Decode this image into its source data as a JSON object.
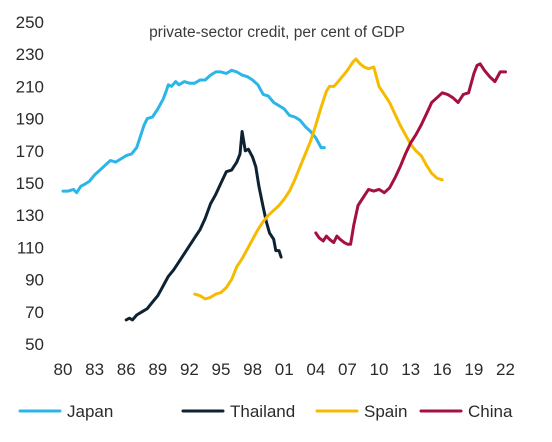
{
  "chart_data": {
    "type": "line",
    "title": "private-sector credit, per cent of GDP",
    "xlabel": "",
    "ylabel": "",
    "xlim": [
      1980,
      2023
    ],
    "ylim": [
      50,
      250
    ],
    "grid": false,
    "legend_position": "bottom",
    "x_ticks": [
      1980,
      1983,
      1986,
      1989,
      1992,
      1995,
      1998,
      2001,
      2004,
      2007,
      2010,
      2013,
      2016,
      2019,
      2022
    ],
    "x_tick_labels": [
      "80",
      "83",
      "86",
      "89",
      "92",
      "95",
      "98",
      "01",
      "04",
      "07",
      "10",
      "13",
      "16",
      "19",
      "22"
    ],
    "y_ticks": [
      50,
      70,
      90,
      110,
      130,
      150,
      170,
      190,
      210,
      230,
      250
    ],
    "y_tick_labels": [
      "50",
      "70",
      "90",
      "110",
      "130",
      "150",
      "170",
      "190",
      "210",
      "230",
      "250"
    ],
    "series": [
      {
        "name": "Japan",
        "color": "#2bb5e8",
        "points": [
          [
            1980.0,
            145
          ],
          [
            1980.5,
            145
          ],
          [
            1981.0,
            146
          ],
          [
            1981.3,
            144
          ],
          [
            1981.7,
            148
          ],
          [
            1982.0,
            149
          ],
          [
            1982.5,
            151
          ],
          [
            1983.0,
            155
          ],
          [
            1983.5,
            158
          ],
          [
            1984.0,
            161
          ],
          [
            1984.5,
            164
          ],
          [
            1985.0,
            163
          ],
          [
            1985.5,
            165
          ],
          [
            1986.0,
            167
          ],
          [
            1986.5,
            168
          ],
          [
            1987.0,
            172
          ],
          [
            1987.3,
            178
          ],
          [
            1987.7,
            186
          ],
          [
            1988.0,
            190
          ],
          [
            1988.5,
            191
          ],
          [
            1989.0,
            196
          ],
          [
            1989.5,
            202
          ],
          [
            1989.8,
            207
          ],
          [
            1990.0,
            211
          ],
          [
            1990.3,
            210
          ],
          [
            1990.7,
            213
          ],
          [
            1991.0,
            211
          ],
          [
            1991.5,
            213
          ],
          [
            1992.0,
            212
          ],
          [
            1992.5,
            212
          ],
          [
            1993.0,
            214
          ],
          [
            1993.5,
            214
          ],
          [
            1994.0,
            217
          ],
          [
            1994.5,
            219
          ],
          [
            1995.0,
            219
          ],
          [
            1995.5,
            218
          ],
          [
            1996.0,
            220
          ],
          [
            1996.5,
            219
          ],
          [
            1997.0,
            217
          ],
          [
            1997.5,
            216
          ],
          [
            1998.0,
            214
          ],
          [
            1998.5,
            211
          ],
          [
            1999.0,
            205
          ],
          [
            1999.5,
            204
          ],
          [
            2000.0,
            200
          ],
          [
            2000.5,
            198
          ],
          [
            2001.0,
            196
          ],
          [
            2001.5,
            192
          ],
          [
            2002.0,
            191
          ],
          [
            2002.5,
            189
          ],
          [
            2003.0,
            185
          ],
          [
            2003.5,
            182
          ],
          [
            2004.0,
            178
          ],
          [
            2004.5,
            172
          ],
          [
            2004.8,
            172
          ]
        ]
      },
      {
        "name": "Thailand",
        "color": "#0d2233",
        "points": [
          [
            1986.0,
            65
          ],
          [
            1986.3,
            66
          ],
          [
            1986.6,
            65
          ],
          [
            1987.0,
            68
          ],
          [
            1987.5,
            70
          ],
          [
            1988.0,
            72
          ],
          [
            1988.5,
            76
          ],
          [
            1989.0,
            80
          ],
          [
            1989.5,
            86
          ],
          [
            1990.0,
            92
          ],
          [
            1990.5,
            96
          ],
          [
            1991.0,
            101
          ],
          [
            1991.5,
            106
          ],
          [
            1992.0,
            111
          ],
          [
            1992.5,
            116
          ],
          [
            1993.0,
            121
          ],
          [
            1993.5,
            128
          ],
          [
            1994.0,
            137
          ],
          [
            1994.5,
            143
          ],
          [
            1995.0,
            150
          ],
          [
            1995.5,
            157
          ],
          [
            1996.0,
            158
          ],
          [
            1996.5,
            163
          ],
          [
            1996.8,
            168
          ],
          [
            1997.0,
            182
          ],
          [
            1997.3,
            170
          ],
          [
            1997.6,
            171
          ],
          [
            1998.0,
            166
          ],
          [
            1998.3,
            160
          ],
          [
            1998.6,
            148
          ],
          [
            1999.0,
            135
          ],
          [
            1999.3,
            126
          ],
          [
            1999.6,
            119
          ],
          [
            2000.0,
            115
          ],
          [
            2000.2,
            108
          ],
          [
            2000.5,
            108
          ],
          [
            2000.7,
            104
          ]
        ]
      },
      {
        "name": "Spain",
        "color": "#f6bb00",
        "points": [
          [
            1992.5,
            81
          ],
          [
            1993.0,
            80
          ],
          [
            1993.5,
            78
          ],
          [
            1994.0,
            79
          ],
          [
            1994.5,
            81
          ],
          [
            1995.0,
            82
          ],
          [
            1995.5,
            85
          ],
          [
            1996.0,
            90
          ],
          [
            1996.5,
            98
          ],
          [
            1997.0,
            103
          ],
          [
            1997.5,
            109
          ],
          [
            1998.0,
            115
          ],
          [
            1998.5,
            121
          ],
          [
            1999.0,
            126
          ],
          [
            1999.5,
            130
          ],
          [
            2000.0,
            133
          ],
          [
            2000.5,
            136
          ],
          [
            2001.0,
            140
          ],
          [
            2001.5,
            145
          ],
          [
            2002.0,
            152
          ],
          [
            2002.5,
            160
          ],
          [
            2003.0,
            168
          ],
          [
            2003.5,
            176
          ],
          [
            2004.0,
            186
          ],
          [
            2004.5,
            197
          ],
          [
            2005.0,
            207
          ],
          [
            2005.3,
            210
          ],
          [
            2005.7,
            210
          ],
          [
            2006.0,
            212
          ],
          [
            2006.5,
            216
          ],
          [
            2007.0,
            220
          ],
          [
            2007.5,
            225
          ],
          [
            2007.8,
            227
          ],
          [
            2008.2,
            224
          ],
          [
            2008.6,
            222
          ],
          [
            2009.0,
            221
          ],
          [
            2009.5,
            222
          ],
          [
            2010.0,
            210
          ],
          [
            2010.5,
            205
          ],
          [
            2011.0,
            200
          ],
          [
            2011.5,
            193
          ],
          [
            2012.0,
            186
          ],
          [
            2012.5,
            180
          ],
          [
            2013.0,
            174
          ],
          [
            2013.5,
            170
          ],
          [
            2014.0,
            167
          ],
          [
            2014.5,
            161
          ],
          [
            2015.0,
            156
          ],
          [
            2015.5,
            153
          ],
          [
            2016.0,
            152
          ]
        ]
      },
      {
        "name": "China",
        "color": "#a4103f",
        "points": [
          [
            2004.0,
            119
          ],
          [
            2004.3,
            116
          ],
          [
            2004.7,
            114
          ],
          [
            2005.0,
            117
          ],
          [
            2005.3,
            115
          ],
          [
            2005.7,
            113
          ],
          [
            2006.0,
            117
          ],
          [
            2006.3,
            115
          ],
          [
            2006.7,
            113
          ],
          [
            2007.0,
            112
          ],
          [
            2007.3,
            112
          ],
          [
            2007.6,
            124
          ],
          [
            2008.0,
            136
          ],
          [
            2008.5,
            141
          ],
          [
            2009.0,
            146
          ],
          [
            2009.5,
            145
          ],
          [
            2010.0,
            146
          ],
          [
            2010.5,
            144
          ],
          [
            2011.0,
            147
          ],
          [
            2011.5,
            153
          ],
          [
            2012.0,
            160
          ],
          [
            2012.5,
            168
          ],
          [
            2013.0,
            175
          ],
          [
            2013.5,
            180
          ],
          [
            2014.0,
            186
          ],
          [
            2014.5,
            193
          ],
          [
            2015.0,
            200
          ],
          [
            2015.5,
            203
          ],
          [
            2016.0,
            206
          ],
          [
            2016.5,
            205
          ],
          [
            2017.0,
            203
          ],
          [
            2017.5,
            200
          ],
          [
            2018.0,
            205
          ],
          [
            2018.5,
            206
          ],
          [
            2019.0,
            218
          ],
          [
            2019.3,
            223
          ],
          [
            2019.6,
            224
          ],
          [
            2020.0,
            220
          ],
          [
            2020.5,
            216
          ],
          [
            2021.0,
            213
          ],
          [
            2021.5,
            219
          ],
          [
            2022.0,
            219
          ]
        ]
      }
    ]
  }
}
